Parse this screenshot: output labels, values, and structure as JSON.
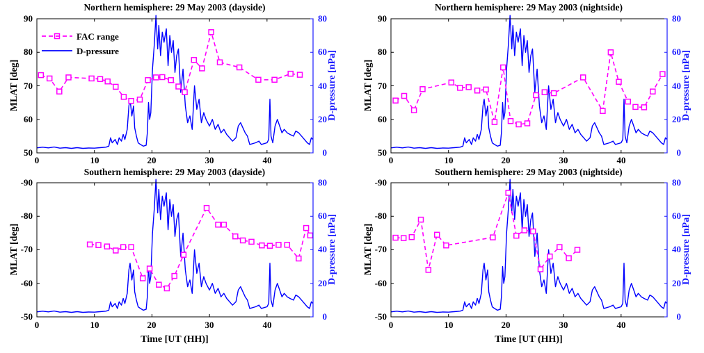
{
  "figure": {
    "left_axis_color": "#000000",
    "right_axis_color": "#1a1aff",
    "fac_color": "#ff00ff",
    "pressure_color": "#0000ff",
    "legend": {
      "fac_label": "FAC range",
      "pressure_label": "D-pressure"
    },
    "x_axis_label": "Time [UT (HH)]",
    "y_left_label": "MLAT [deg]",
    "y_right_label": "D-pressure [nPa]"
  },
  "chart_data": [
    {
      "type": "line",
      "title": "Northern hemisphere: 29 May 2003 (dayside)",
      "xlim": [
        0,
        48
      ],
      "x_ticks": [
        "0",
        "10",
        "20",
        "30",
        "40"
      ],
      "ylim_left": [
        50,
        90
      ],
      "y_ticks_left": [
        "50",
        "60",
        "70",
        "80",
        "90"
      ],
      "ylim_right": [
        0,
        80
      ],
      "y_ticks_right": [
        "0",
        "20",
        "40",
        "60",
        "80"
      ],
      "ylabel": "MLAT [deg]",
      "y2label": "D-pressure [nPa]",
      "xlabel": "",
      "series": [
        {
          "name": "FAC range",
          "axis": "left",
          "x": [
            0.7,
            2.2,
            3.9,
            5.5,
            9.5,
            11,
            12.3,
            13.7,
            15.1,
            16.4,
            17.9,
            19.3,
            20.7,
            21.8,
            23.3,
            24.6,
            25.7,
            27.3,
            28.7,
            30.3,
            31.8,
            35.2,
            38.5,
            41.3,
            44.1,
            45.7
          ],
          "y": [
            73.2,
            72.2,
            68.3,
            72.5,
            72.2,
            72,
            71.3,
            69.7,
            66.7,
            65.5,
            65.9,
            71.7,
            72.5,
            72.6,
            71.7,
            69.8,
            68.1,
            77.7,
            75.2,
            86,
            77,
            75.5,
            71.8,
            71.8,
            73.6,
            73.3
          ]
        },
        {
          "name": "D-pressure",
          "axis": "right",
          "ref": "dpressure_series"
        }
      ]
    },
    {
      "type": "line",
      "title": "Northern hemisphere: 29 May 2003 (nightside)",
      "xlim": [
        0,
        48
      ],
      "x_ticks": [
        "0",
        "10",
        "20",
        "30",
        "40"
      ],
      "ylim_left": [
        50,
        90
      ],
      "y_ticks_left": [
        "50",
        "60",
        "70",
        "80",
        "90"
      ],
      "ylim_right": [
        0,
        80
      ],
      "y_ticks_right": [
        "0",
        "20",
        "40",
        "60",
        "80"
      ],
      "ylabel": "MLAT [deg]",
      "y2label": "D-pressure [nPa]",
      "xlabel": "",
      "series": [
        {
          "name": "FAC range",
          "axis": "left",
          "x": [
            0.8,
            2.3,
            4,
            5.5,
            10.5,
            12,
            13.5,
            15,
            16.5,
            18,
            19.5,
            20.8,
            22.2,
            23.7,
            25.2,
            26.7,
            28.3,
            33.4,
            36.8,
            38.2,
            39.6,
            41.2,
            42.5,
            44,
            45.5,
            47.2
          ],
          "y": [
            65.6,
            67,
            62.7,
            69,
            71,
            69.4,
            69.6,
            68.6,
            68.9,
            59.2,
            75.5,
            59.5,
            58.5,
            58.8,
            67.2,
            68.1,
            67.8,
            72.5,
            62.5,
            80,
            71.2,
            65.3,
            63.7,
            63.6,
            68.3,
            73.5
          ]
        },
        {
          "name": "D-pressure",
          "axis": "right",
          "ref": "dpressure_series"
        }
      ]
    },
    {
      "type": "line",
      "title": "Southern hemisphere: 29 May 2003 (dayside)",
      "xlim": [
        0,
        48
      ],
      "x_ticks": [
        "0",
        "10",
        "20",
        "30",
        "40"
      ],
      "ylim_left": [
        -50,
        -90
      ],
      "y_ticks_left": [
        "-50",
        "-60",
        "-70",
        "-80",
        "-90"
      ],
      "ylim_right": [
        0,
        80
      ],
      "y_ticks_right": [
        "0",
        "20",
        "40",
        "60",
        "80"
      ],
      "ylabel": "MLAT [deg]",
      "y2label": "D-pressure [nPa]",
      "xlabel": "Time [UT (HH)]",
      "series": [
        {
          "name": "FAC range",
          "axis": "left",
          "x": [
            9.2,
            10.7,
            12.2,
            13.7,
            15,
            16.4,
            18.4,
            19.6,
            21.2,
            22.6,
            23.9,
            25.5,
            29.5,
            31.5,
            32.5,
            34.5,
            35.8,
            37.3,
            39.1,
            40.5,
            42,
            43.5,
            45.5,
            46.8,
            47.5
          ],
          "y": [
            -71.6,
            -71.4,
            -71,
            -69.8,
            -70.8,
            -70.8,
            -61.5,
            -64.4,
            -59.6,
            -58.5,
            -62.2,
            -68.5,
            -82.5,
            -77.5,
            -77.5,
            -74,
            -72.8,
            -72.4,
            -71.3,
            -71.2,
            -71.5,
            -71.5,
            -67.4,
            -76.5,
            -74.3
          ]
        },
        {
          "name": "D-pressure",
          "axis": "right",
          "ref": "dpressure_series"
        }
      ]
    },
    {
      "type": "line",
      "title": "Southern hemisphere: 29 May 2003 (nightside)",
      "xlim": [
        0,
        48
      ],
      "x_ticks": [
        "0",
        "10",
        "20",
        "30",
        "40"
      ],
      "ylim_left": [
        -50,
        -90
      ],
      "y_ticks_left": [
        "-50",
        "-60",
        "-70",
        "-80",
        "-90"
      ],
      "ylim_right": [
        0,
        80
      ],
      "y_ticks_right": [
        "0",
        "20",
        "40",
        "60",
        "80"
      ],
      "ylabel": "MLAT [deg]",
      "y2label": "D-pressure [nPa]",
      "xlabel": "Time [UT (HH)]",
      "series": [
        {
          "name": "FAC range",
          "axis": "left",
          "x": [
            0.8,
            2.2,
            3.6,
            5.2,
            6.5,
            8,
            9.6,
            17.7,
            20.4,
            21.8,
            23.2,
            24.7,
            26,
            27.6,
            29.3,
            30.9,
            32.4
          ],
          "y": [
            -73.6,
            -73.5,
            -73.8,
            -79,
            -64,
            -74.5,
            -71.3,
            -73.7,
            -87,
            -74.2,
            -75.8,
            -75.5,
            -64.2,
            -68,
            -70.8,
            -67.5,
            -70
          ]
        },
        {
          "name": "D-pressure",
          "axis": "right",
          "ref": "dpressure_series"
        }
      ]
    }
  ],
  "dpressure_series": {
    "name": "D-pressure",
    "points": [
      [
        0,
        3
      ],
      [
        1,
        3.4
      ],
      [
        2,
        3
      ],
      [
        3,
        3.5
      ],
      [
        4,
        2.8
      ],
      [
        5,
        3.1
      ],
      [
        6,
        2.7
      ],
      [
        7,
        3.1
      ],
      [
        8,
        2.7
      ],
      [
        9,
        2.9
      ],
      [
        10,
        2.8
      ],
      [
        11,
        3.1
      ],
      [
        12,
        3.4
      ],
      [
        12.5,
        4
      ],
      [
        12.8,
        9
      ],
      [
        13.1,
        6
      ],
      [
        13.6,
        8
      ],
      [
        14,
        5
      ],
      [
        14.3,
        9
      ],
      [
        14.7,
        7
      ],
      [
        15,
        11
      ],
      [
        15.3,
        8
      ],
      [
        15.7,
        14
      ],
      [
        16,
        28
      ],
      [
        16.2,
        32
      ],
      [
        16.5,
        22
      ],
      [
        16.8,
        28
      ],
      [
        17,
        15
      ],
      [
        17.3,
        10
      ],
      [
        17.6,
        6
      ],
      [
        18,
        5
      ],
      [
        18.5,
        4
      ],
      [
        19,
        4.5
      ],
      [
        19.2,
        12
      ],
      [
        19.4,
        30
      ],
      [
        19.6,
        20
      ],
      [
        19.8,
        24
      ],
      [
        20.1,
        50
      ],
      [
        20.4,
        64
      ],
      [
        20.7,
        82
      ],
      [
        21,
        62
      ],
      [
        21.2,
        76
      ],
      [
        21.5,
        58
      ],
      [
        21.8,
        72
      ],
      [
        22.1,
        66
      ],
      [
        22.5,
        74
      ],
      [
        22.8,
        52
      ],
      [
        23.1,
        70
      ],
      [
        23.4,
        60
      ],
      [
        23.7,
        67
      ],
      [
        24,
        48
      ],
      [
        24.3,
        58
      ],
      [
        24.6,
        62
      ],
      [
        25,
        36
      ],
      [
        25.4,
        50
      ],
      [
        25.8,
        28
      ],
      [
        26.2,
        18
      ],
      [
        26.6,
        22
      ],
      [
        27,
        14
      ],
      [
        27.4,
        40
      ],
      [
        27.8,
        26
      ],
      [
        28.2,
        32
      ],
      [
        28.6,
        18
      ],
      [
        29,
        24
      ],
      [
        29.4,
        20
      ],
      [
        30,
        16
      ],
      [
        30.5,
        20
      ],
      [
        31,
        14
      ],
      [
        31.5,
        17
      ],
      [
        32,
        12
      ],
      [
        32.5,
        14
      ],
      [
        33,
        11
      ],
      [
        33.5,
        9
      ],
      [
        34,
        7
      ],
      [
        34.6,
        9
      ],
      [
        35,
        16
      ],
      [
        35.4,
        18
      ],
      [
        35.8,
        15
      ],
      [
        36.2,
        12
      ],
      [
        36.6,
        10
      ],
      [
        37,
        5
      ],
      [
        38,
        6
      ],
      [
        38.6,
        7
      ],
      [
        39,
        5
      ],
      [
        40,
        6
      ],
      [
        40.3,
        8
      ],
      [
        40.5,
        32
      ],
      [
        40.7,
        10
      ],
      [
        41,
        6
      ],
      [
        41.4,
        16
      ],
      [
        41.8,
        20
      ],
      [
        42.2,
        16
      ],
      [
        42.6,
        12
      ],
      [
        43,
        14
      ],
      [
        43.5,
        12
      ],
      [
        44,
        11
      ],
      [
        44.6,
        10
      ],
      [
        45,
        13
      ],
      [
        45.5,
        12
      ],
      [
        46,
        10
      ],
      [
        46.5,
        8
      ],
      [
        47,
        6
      ],
      [
        47.4,
        5
      ],
      [
        47.7,
        9
      ],
      [
        48,
        8
      ]
    ]
  }
}
